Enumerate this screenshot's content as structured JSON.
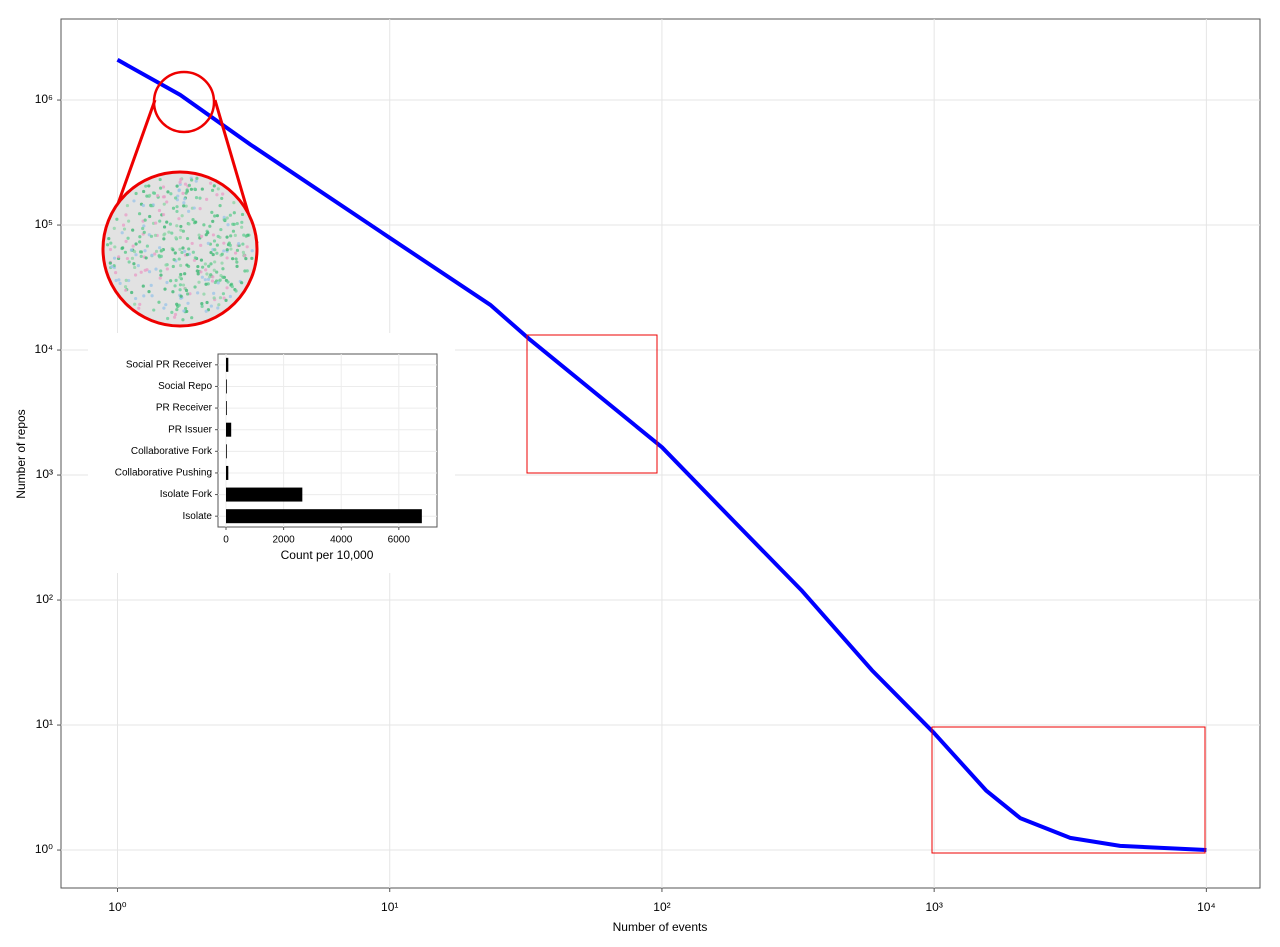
{
  "chart_data": [
    {
      "type": "line",
      "x_label": "Number of events",
      "y_label": "Number of repos",
      "x": [
        1,
        1.7,
        3.08,
        10,
        23.4,
        32.9,
        100,
        182,
        325,
        590,
        1000,
        1550,
        2070,
        3160,
        4820,
        10000
      ],
      "values": [
        2100000,
        1100000,
        440000,
        79000,
        23000,
        12000,
        1670,
        437,
        120,
        27.5,
        8.6,
        3.0,
        1.8,
        1.25,
        1.08,
        1.0
      ],
      "color": "#0000ff",
      "log_x": true,
      "log_y": true,
      "grid": true,
      "xlim": [
        0.62,
        15740
      ],
      "ylim": [
        0.497,
        4450000
      ],
      "xticks": [
        {
          "value": 1,
          "label": "10⁰"
        },
        {
          "value": 10,
          "label": "10¹"
        },
        {
          "value": 100,
          "label": "10²"
        },
        {
          "value": 1000,
          "label": "10³"
        },
        {
          "value": 10000,
          "label": "10⁴"
        }
      ],
      "yticks": [
        {
          "value": 1,
          "label": "10⁰"
        },
        {
          "value": 10,
          "label": "10¹"
        },
        {
          "value": 100,
          "label": "10²"
        },
        {
          "value": 1000,
          "label": "10³"
        },
        {
          "value": 10000,
          "label": "10⁴"
        },
        {
          "value": 100000,
          "label": "10⁵"
        },
        {
          "value": 1000000,
          "label": "10⁶"
        }
      ]
    },
    {
      "type": "bar",
      "orientation": "horizontal",
      "x_label": "Count per 10,000",
      "categories": [
        "Isolate",
        "Isolate Fork",
        "Collaborative Pushing",
        "Collaborative Fork",
        "PR Issuer",
        "PR Receiver",
        "Social Repo",
        "Social PR Receiver"
      ],
      "values": [
        6800,
        2650,
        80,
        20,
        180,
        5,
        5,
        80
      ],
      "color": "#000000",
      "grid": true,
      "xlim": [
        -278,
        7326
      ],
      "xticks": [
        0,
        2000,
        4000,
        6000
      ]
    }
  ]
}
